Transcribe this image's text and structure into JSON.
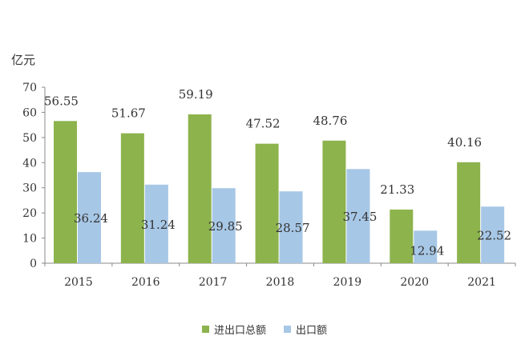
{
  "chart_data": {
    "type": "bar",
    "ylabel": "亿元",
    "categories": [
      "2015",
      "2016",
      "2017",
      "2018",
      "2019",
      "2020",
      "2021"
    ],
    "series": [
      {
        "name": "进出口总额",
        "color": "#8db34d",
        "values": [
          56.55,
          51.67,
          59.19,
          47.52,
          48.76,
          21.33,
          40.16
        ],
        "labels": [
          "56.55",
          "51.67",
          "59.19",
          "47.52",
          "48.76",
          "21.33",
          "40.16"
        ]
      },
      {
        "name": "出口额",
        "color": "#a7c7e6",
        "values": [
          36.24,
          31.24,
          29.85,
          28.57,
          37.45,
          12.94,
          22.52
        ],
        "labels": [
          "36.24",
          "31.24",
          "29.85",
          "28.57",
          "37.45",
          "12.94",
          "22.52"
        ]
      }
    ],
    "ylim": [
      0,
      70
    ],
    "yticks": [
      "0",
      "10",
      "20",
      "30",
      "40",
      "50",
      "60",
      "70"
    ],
    "grid": false,
    "legend_position": "bottom"
  }
}
